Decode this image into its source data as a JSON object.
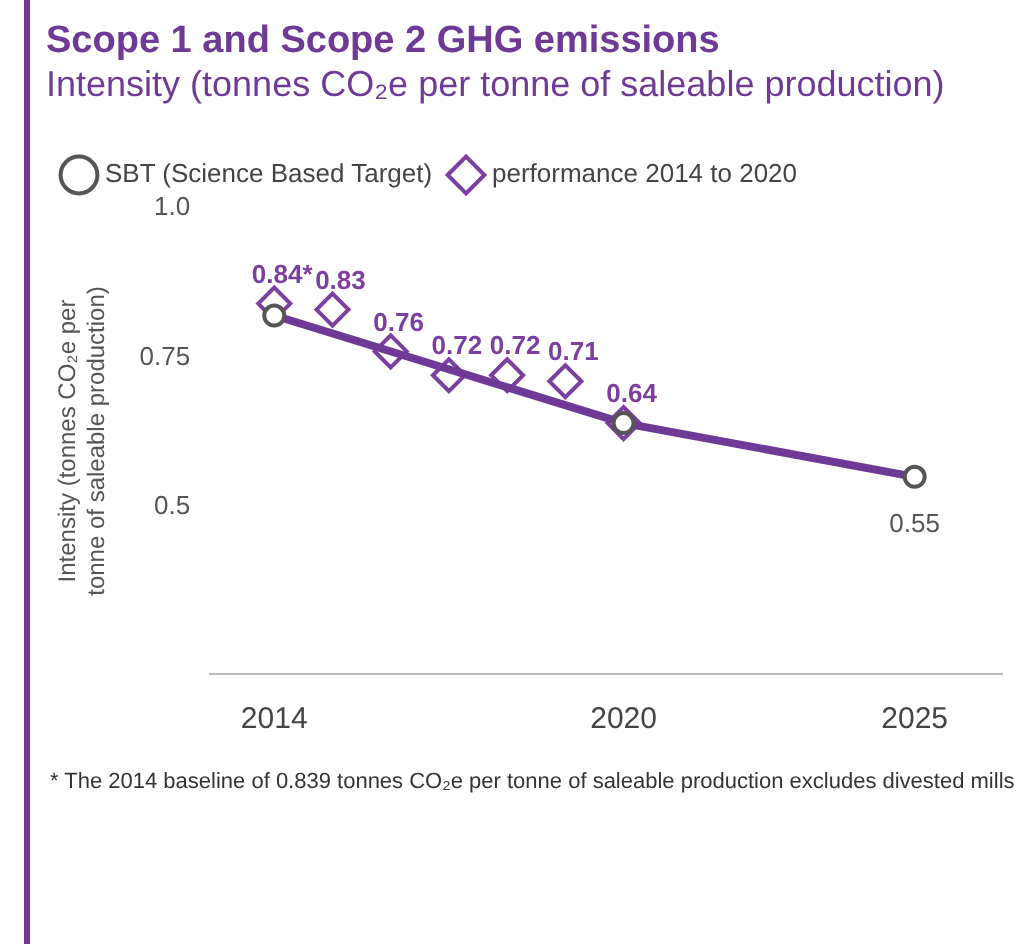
{
  "chart_data": {
    "type": "line",
    "title": "Scope 1 and Scope 2 GHG emissions",
    "subtitle": "Intensity (tonnes CO₂e per tonne of saleable production)",
    "ylabel": "Intensity (tonnes CO₂e per tonne of saleable production)",
    "xlim": [
      2012.9,
      2026.5
    ],
    "xticks": [
      2014,
      2020,
      2025
    ],
    "ylim": [
      0.22,
      1.0
    ],
    "yticks": [
      0.5,
      0.75,
      {
        "value": 1.0,
        "label": "1.0"
      }
    ],
    "grid": false,
    "legend": "top left",
    "series": [
      {
        "name": "SBT (Science Based Target)",
        "color": "#6f3a96",
        "x": [
          2014,
          2020,
          2025
        ],
        "values": [
          0.82,
          0.64,
          0.55
        ],
        "marker": "circle",
        "value_labels": [
          null,
          null,
          "0.55"
        ]
      },
      {
        "name": "performance 2014 to 2020",
        "type": "scatter",
        "color": "#7b3fa0",
        "x": [
          2014,
          2015,
          2016,
          2017,
          2018,
          2019,
          2020
        ],
        "values": [
          0.84,
          0.83,
          0.76,
          0.72,
          0.72,
          0.71,
          0.64
        ],
        "marker": "diamond",
        "value_labels": [
          "0.84*",
          "0.83",
          "0.76",
          "0.72",
          "0.72",
          "0.71",
          "0.64"
        ]
      }
    ],
    "annotations": [
      "* The 2014 baseline of 0.839 tonnes CO₂e per tonne of saleable production excludes divested mills"
    ]
  }
}
